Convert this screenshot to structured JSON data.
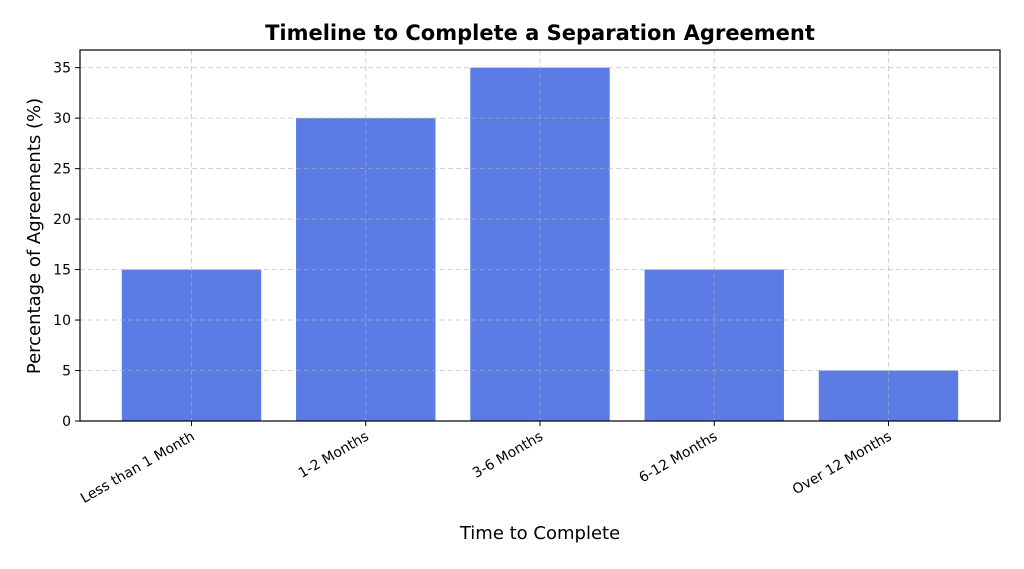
{
  "chart_data": {
    "type": "bar",
    "title": "Timeline to Complete a Separation Agreement",
    "x_label": "Time to Complete",
    "y_label": "Percentage of Agreements (%)",
    "categories": [
      "Less than 1 Month",
      "1-2 Months",
      "3-6 Months",
      "6-12 Months",
      "Over 12 Months"
    ],
    "values": [
      15,
      30,
      35,
      15,
      5
    ],
    "color": "#5b7be5",
    "ylim": [
      0,
      36.75
    ],
    "yticks": [
      0,
      5,
      10,
      15,
      20,
      25,
      30,
      35
    ],
    "grid": true
  }
}
